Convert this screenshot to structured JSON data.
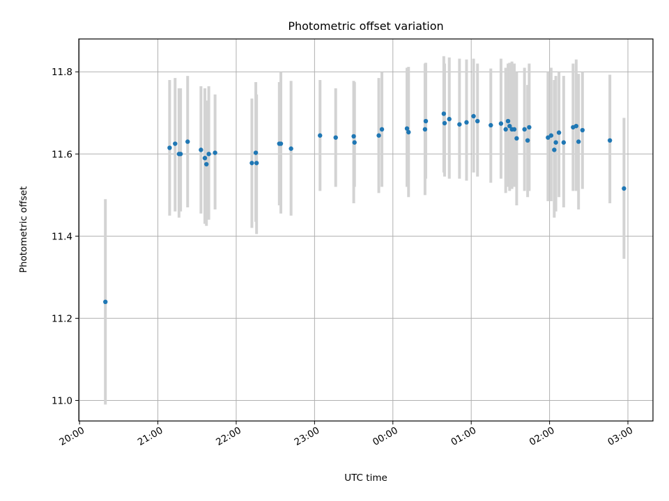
{
  "chart_data": {
    "type": "scatter",
    "title": "Photometric offset variation",
    "xlabel": "UTC time",
    "ylabel": "Photometric offset",
    "xlim": [
      -0.01,
      7.32
    ],
    "ylim": [
      10.95,
      11.88
    ],
    "xtick_values": [
      0,
      1,
      2,
      3,
      4,
      5,
      6,
      7
    ],
    "xtick_labels": [
      "20:00",
      "21:00",
      "22:00",
      "23:00",
      "00:00",
      "01:00",
      "02:00",
      "03:00"
    ],
    "ytick_values": [
      11.0,
      11.2,
      11.4,
      11.6,
      11.8
    ],
    "ytick_labels": [
      "11.0",
      "11.2",
      "11.4",
      "11.6",
      "11.8"
    ],
    "grid": true,
    "marker_color": "#1f77b4",
    "errorbar_color": "#d3d3d3",
    "series": [
      {
        "x": [
          0.33,
          1.15,
          1.22,
          1.27,
          1.29,
          1.38,
          1.55,
          1.6,
          1.62,
          1.65,
          1.73,
          2.2,
          2.25,
          2.26,
          2.55,
          2.57,
          2.7,
          3.07,
          3.27,
          3.5,
          3.51,
          3.82,
          3.86,
          4.18,
          4.2,
          4.41,
          4.42,
          4.65,
          4.66,
          4.72,
          4.85,
          4.94,
          5.03,
          5.08,
          5.25,
          5.38,
          5.44,
          5.47,
          5.49,
          5.52,
          5.55,
          5.58,
          5.68,
          5.72,
          5.74,
          5.98,
          6.02,
          6.06,
          6.08,
          6.12,
          6.18,
          6.3,
          6.34,
          6.37,
          6.42,
          6.77,
          6.95
        ],
        "y": [
          11.24,
          11.615,
          11.625,
          11.6,
          11.6,
          11.63,
          11.61,
          11.59,
          11.575,
          11.6,
          11.603,
          11.578,
          11.603,
          11.578,
          11.625,
          11.625,
          11.613,
          11.645,
          11.64,
          11.643,
          11.628,
          11.645,
          11.66,
          11.662,
          11.653,
          11.66,
          11.68,
          11.698,
          11.675,
          11.685,
          11.672,
          11.677,
          11.692,
          11.68,
          11.67,
          11.674,
          11.66,
          11.68,
          11.668,
          11.66,
          11.66,
          11.638,
          11.66,
          11.633,
          11.665,
          11.64,
          11.645,
          11.61,
          11.628,
          11.652,
          11.628,
          11.665,
          11.668,
          11.63,
          11.658,
          11.633,
          11.516
        ],
        "yerr_low": [
          10.99,
          11.45,
          11.46,
          11.445,
          11.46,
          11.47,
          11.455,
          11.43,
          11.425,
          11.44,
          11.465,
          11.42,
          11.435,
          11.405,
          11.475,
          11.455,
          11.45,
          11.51,
          11.52,
          11.48,
          11.52,
          11.505,
          11.52,
          11.52,
          11.495,
          11.5,
          11.54,
          11.555,
          11.545,
          11.54,
          11.54,
          11.535,
          11.555,
          11.545,
          11.53,
          11.54,
          11.505,
          11.52,
          11.51,
          11.515,
          11.52,
          11.475,
          11.51,
          11.495,
          11.51,
          11.485,
          11.485,
          11.445,
          11.46,
          11.495,
          11.47,
          11.51,
          11.51,
          11.465,
          11.515,
          11.48,
          11.345
        ],
        "yerr_high": [
          11.49,
          11.78,
          11.785,
          11.76,
          11.76,
          11.79,
          11.765,
          11.76,
          11.73,
          11.765,
          11.745,
          11.735,
          11.775,
          11.745,
          11.775,
          11.8,
          11.778,
          11.78,
          11.76,
          11.778,
          11.775,
          11.785,
          11.8,
          11.81,
          11.812,
          11.82,
          11.822,
          11.838,
          11.82,
          11.835,
          11.832,
          11.83,
          11.832,
          11.82,
          11.808,
          11.832,
          11.81,
          11.82,
          11.822,
          11.825,
          11.82,
          11.8,
          11.81,
          11.768,
          11.82,
          11.8,
          11.81,
          11.78,
          11.79,
          11.8,
          11.79,
          11.82,
          11.83,
          11.795,
          11.8,
          11.793,
          11.688
        ]
      }
    ]
  }
}
